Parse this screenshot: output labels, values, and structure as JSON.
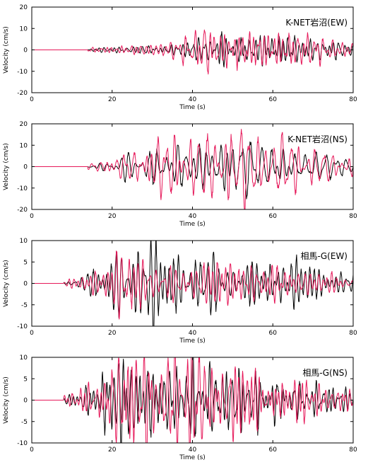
{
  "chart_data": [
    {
      "type": "line",
      "station_label": "K-NET岩沼(EW)",
      "xlabel": "Time (s)",
      "ylabel": "Velocity (cm/s)",
      "xlim": [
        0,
        80
      ],
      "ylim": [
        -20,
        20
      ],
      "xticks": [
        "0",
        "20",
        "40",
        "60",
        "80"
      ],
      "yticks": [
        "-20",
        "-10",
        "0",
        "10",
        "20"
      ],
      "grid": false,
      "colors": {
        "observed": "#000000",
        "synthetic": "#e6195a"
      },
      "signal": {
        "onset_s": 14,
        "peak_time_s": 43,
        "peak_amplitude": 7.2,
        "secondary_peak_time_s": 53,
        "secondary_amplitude": -8.8,
        "decay_start_s": 62,
        "end_amplitude": 3.5,
        "dominant_period_s": 1.4
      },
      "series": [
        {
          "role": "observed",
          "seed": 11
        },
        {
          "role": "synthetic",
          "seed": 29
        }
      ]
    },
    {
      "type": "line",
      "station_label": "K-NET岩沼(NS)",
      "xlabel": "Time (s)",
      "ylabel": "Velocity (cm/s)",
      "xlim": [
        0,
        80
      ],
      "ylim": [
        -20,
        20
      ],
      "xticks": [
        "0",
        "20",
        "40",
        "60",
        "80"
      ],
      "yticks": [
        "-20",
        "-10",
        "0",
        "10",
        "20"
      ],
      "grid": false,
      "colors": {
        "observed": "#000000",
        "synthetic": "#e6195a"
      },
      "signal": {
        "onset_s": 14,
        "peak_time_s": 30,
        "peak_amplitude": 11.5,
        "secondary_peak_time_s": 48.5,
        "secondary_amplitude": 15.8,
        "decay_start_s": 55,
        "end_amplitude": 3.0,
        "dominant_period_s": 1.6
      },
      "series": [
        {
          "role": "observed",
          "seed": 7
        },
        {
          "role": "synthetic",
          "seed": 41
        }
      ]
    },
    {
      "type": "line",
      "station_label": "相馬-G(EW)",
      "xlabel": "Time (s)",
      "ylabel": "Velocity (cm/s)",
      "xlim": [
        0,
        80
      ],
      "ylim": [
        -10,
        10
      ],
      "xticks": [
        "0",
        "20",
        "40",
        "60",
        "80"
      ],
      "yticks": [
        "-10",
        "-5",
        "0",
        "5",
        "10"
      ],
      "grid": false,
      "colors": {
        "observed": "#000000",
        "synthetic": "#e6195a"
      },
      "signal": {
        "onset_s": 8,
        "peak_time_s": 22.5,
        "peak_amplitude": 7.6,
        "secondary_peak_time_s": 50,
        "secondary_amplitude": 3.5,
        "decay_start_s": 55,
        "end_amplitude": 1.2,
        "dominant_period_s": 1.3
      },
      "series": [
        {
          "role": "observed",
          "seed": 17
        },
        {
          "role": "synthetic",
          "seed": 53
        }
      ]
    },
    {
      "type": "line",
      "station_label": "相馬-G(NS)",
      "xlabel": "Time (s)",
      "ylabel": "Velocity (cm/s)",
      "xlim": [
        0,
        80
      ],
      "ylim": [
        -10,
        10
      ],
      "xticks": [
        "0",
        "20",
        "40",
        "60",
        "80"
      ],
      "yticks": [
        "-10",
        "-5",
        "0",
        "5",
        "10"
      ],
      "grid": false,
      "colors": {
        "observed": "#000000",
        "synthetic": "#e6195a"
      },
      "signal": {
        "onset_s": 8,
        "peak_time_s": 21.5,
        "peak_amplitude": 10,
        "secondary_peak_time_s": 40,
        "secondary_amplitude": 7.5,
        "decay_start_s": 50,
        "end_amplitude": 1.5,
        "dominant_period_s": 1.2
      },
      "series": [
        {
          "role": "observed",
          "seed": 23
        },
        {
          "role": "synthetic",
          "seed": 61
        }
      ]
    }
  ]
}
